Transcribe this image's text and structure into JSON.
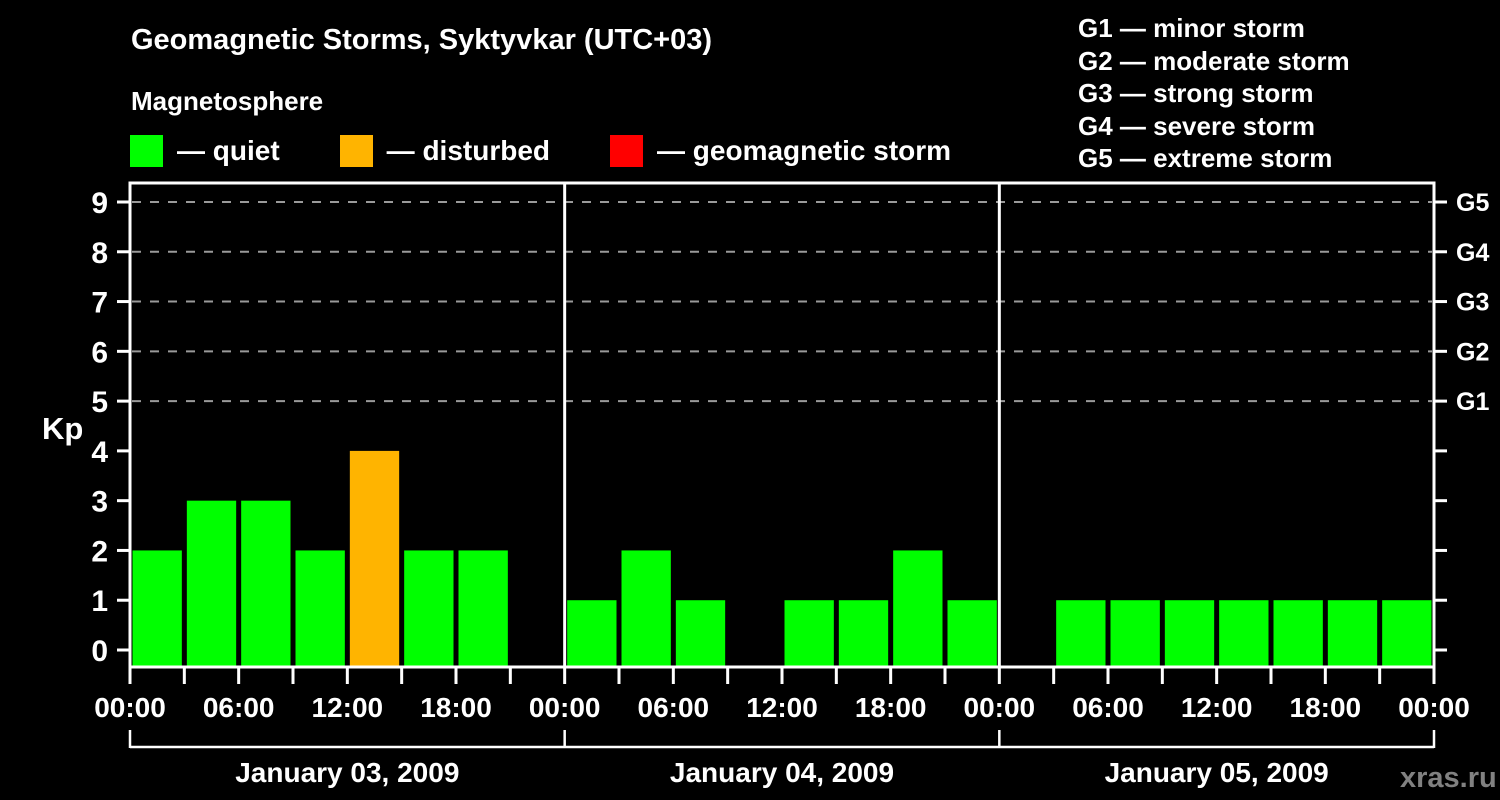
{
  "header": {
    "title": "Geomagnetic Storms, Syktyvkar (UTC+03)",
    "subtitle": "Magnetosphere"
  },
  "legend": {
    "items": [
      {
        "key": "quiet",
        "label": "— quiet",
        "color": "#00ff00"
      },
      {
        "key": "disturbed",
        "label": "— disturbed",
        "color": "#ffb400"
      },
      {
        "key": "storm",
        "label": "— geomagnetic storm",
        "color": "#ff0000"
      }
    ]
  },
  "storm_scale_legend": {
    "items": [
      {
        "key": "g1",
        "label": "G1 — minor storm"
      },
      {
        "key": "g2",
        "label": "G2 — moderate storm"
      },
      {
        "key": "g3",
        "label": "G3 — strong storm"
      },
      {
        "key": "g4",
        "label": "G4 — severe storm"
      },
      {
        "key": "g5",
        "label": "G5 — extreme storm"
      }
    ]
  },
  "watermark": "xras.ru",
  "chart_data": {
    "type": "bar",
    "title": "Geomagnetic Storms, Syktyvkar (UTC+03)",
    "ylabel": "Kp",
    "ylim": [
      0,
      9.4
    ],
    "y_ticks": [
      0,
      1,
      2,
      3,
      4,
      5,
      6,
      7,
      8,
      9
    ],
    "grid": "dashed horizontal gridlines at Kp 5-9 (G1-G5 levels)",
    "legend_position": "top",
    "bar_interval_hours": 3,
    "x_tick_labels": [
      "00:00",
      "06:00",
      "12:00",
      "18:00",
      "00:00",
      "06:00",
      "12:00",
      "18:00",
      "00:00",
      "06:00",
      "12:00",
      "18:00",
      "00:00"
    ],
    "right_axis_labels": [
      {
        "kp": 9,
        "label": "G5"
      },
      {
        "kp": 8,
        "label": "G4"
      },
      {
        "kp": 7,
        "label": "G3"
      },
      {
        "kp": 6,
        "label": "G2"
      },
      {
        "kp": 5,
        "label": "G1"
      }
    ],
    "state_colors": {
      "quiet": "#00ff00",
      "disturbed": "#ffb400",
      "storm": "#ff0000"
    },
    "axis_color": "#ffffff",
    "grid_color": "#9a9a9a",
    "days": [
      {
        "date": "January 03, 2009",
        "kp_values": [
          2,
          3,
          3,
          2,
          4,
          2,
          2,
          0
        ],
        "states": [
          "quiet",
          "quiet",
          "quiet",
          "quiet",
          "disturbed",
          "quiet",
          "quiet",
          "quiet"
        ]
      },
      {
        "date": "January 04, 2009",
        "kp_values": [
          1,
          2,
          1,
          0,
          1,
          1,
          2,
          1
        ],
        "states": [
          "quiet",
          "quiet",
          "quiet",
          "quiet",
          "quiet",
          "quiet",
          "quiet",
          "quiet"
        ]
      },
      {
        "date": "January 05, 2009",
        "kp_values": [
          0,
          1,
          1,
          1,
          1,
          1,
          1,
          1
        ],
        "states": [
          "quiet",
          "quiet",
          "quiet",
          "quiet",
          "quiet",
          "quiet",
          "quiet",
          "quiet"
        ]
      }
    ]
  }
}
